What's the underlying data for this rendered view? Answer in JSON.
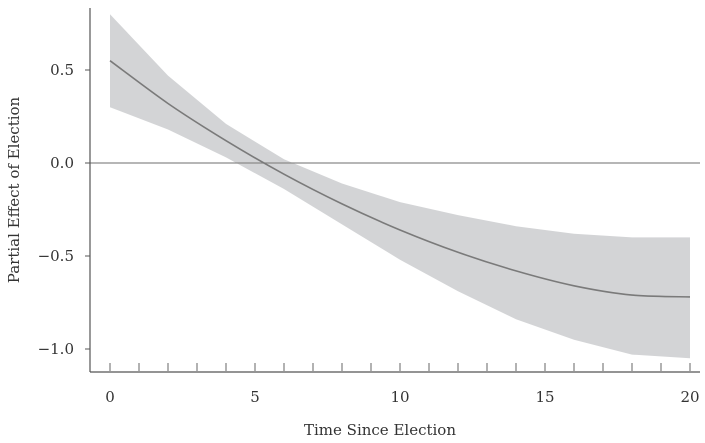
{
  "chart_data": {
    "type": "line",
    "title": "",
    "xlabel": "Time Since Election",
    "ylabel": "Partial Effect of Election",
    "xlim": [
      0,
      20
    ],
    "ylim": [
      -1.0,
      0.8
    ],
    "x_ticks": [
      0,
      5,
      10,
      15,
      20
    ],
    "x_tick_labels": [
      "0",
      "5",
      "10",
      "15",
      "20"
    ],
    "y_ticks": [
      0.5,
      0.0,
      -0.5,
      -1.0
    ],
    "y_tick_labels": [
      "0.5",
      "0.0",
      "−0.5",
      "−1.0"
    ],
    "x_rug": [
      0,
      1,
      2,
      3,
      4,
      5,
      6,
      7,
      8,
      9,
      10,
      11,
      12,
      13,
      14,
      15,
      16,
      17,
      18,
      19,
      20
    ],
    "reference_line_y": 0.0,
    "grid": false,
    "series": [
      {
        "x": [
          0,
          2,
          4,
          6,
          8,
          10,
          12,
          14,
          16,
          18,
          20
        ],
        "y": [
          0.55,
          0.32,
          0.12,
          -0.06,
          -0.22,
          -0.36,
          -0.48,
          -0.58,
          -0.66,
          -0.71,
          -0.72
        ],
        "lower": [
          0.3,
          0.18,
          0.03,
          -0.14,
          -0.33,
          -0.52,
          -0.69,
          -0.84,
          -0.95,
          -1.03,
          -1.05
        ],
        "upper": [
          0.8,
          0.47,
          0.21,
          0.02,
          -0.11,
          -0.21,
          -0.28,
          -0.34,
          -0.38,
          -0.4,
          -0.4
        ]
      }
    ],
    "colors": {
      "line": "#7a7a7a",
      "band": "#d3d4d6",
      "axis": "#555555",
      "reference": "#8a8a8a"
    }
  }
}
